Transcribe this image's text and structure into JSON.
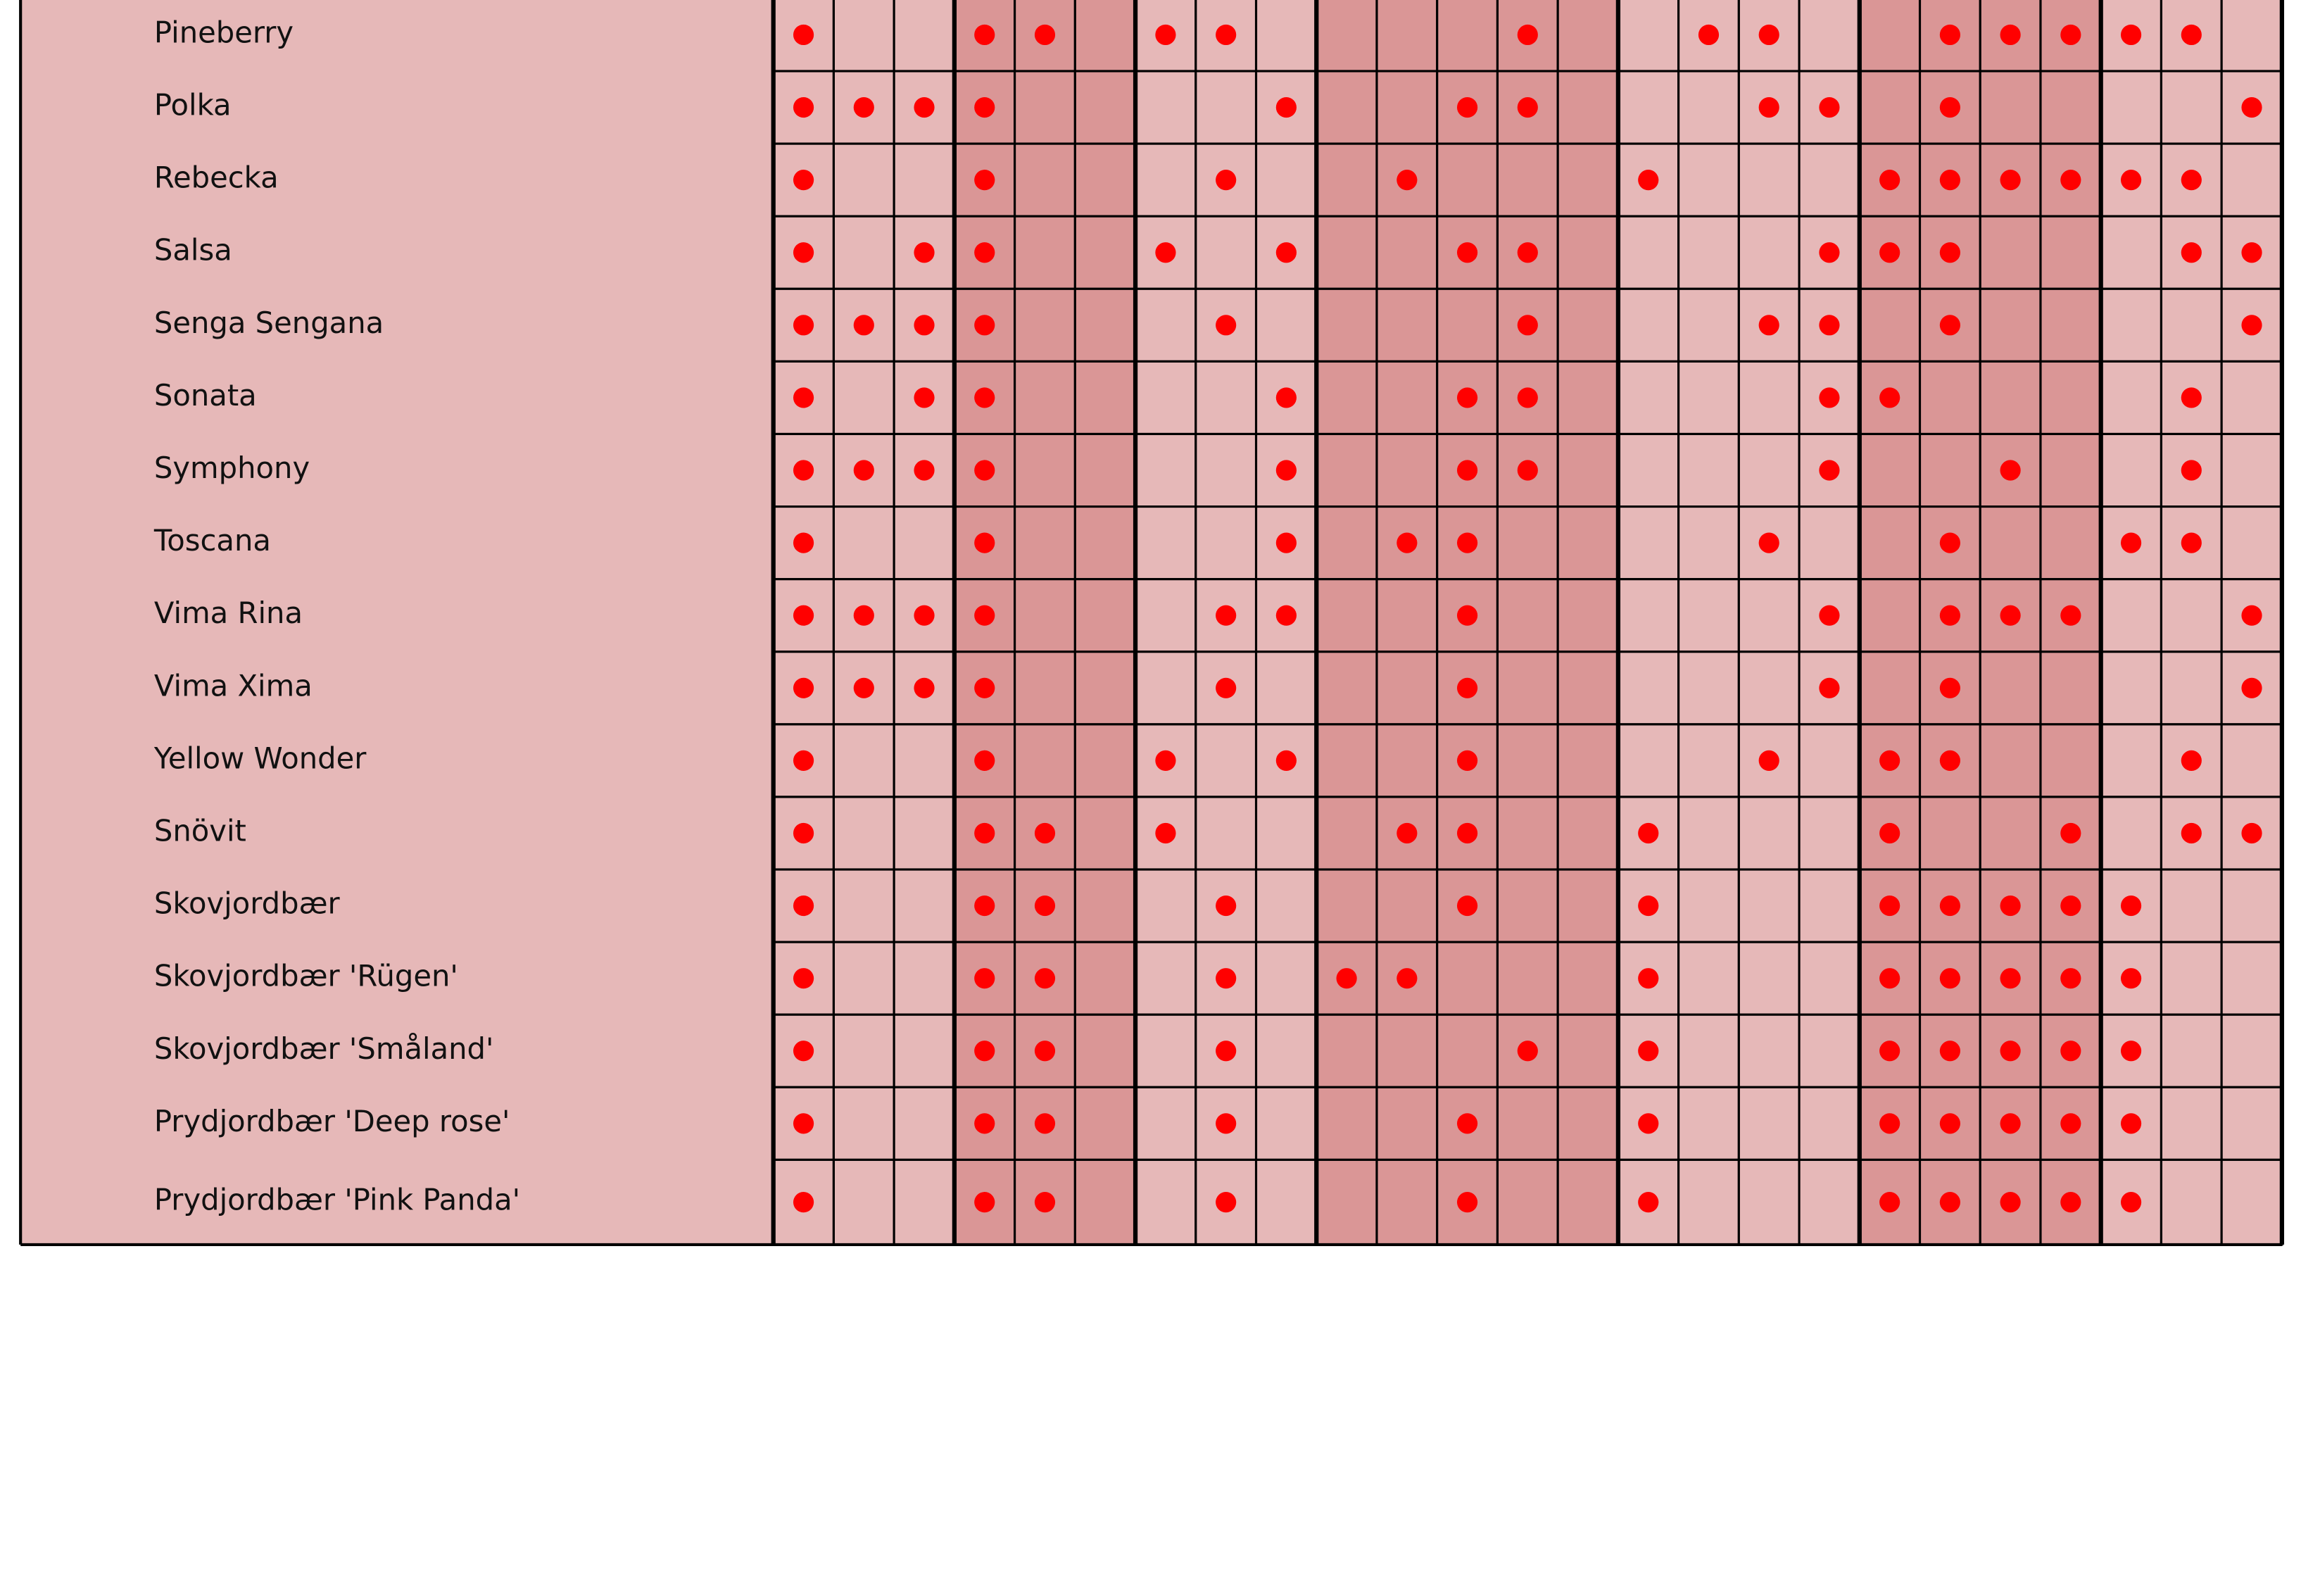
{
  "table": {
    "rows": [
      {
        "name": "Pineberry",
        "cells": [
          1,
          0,
          0,
          1,
          1,
          0,
          1,
          1,
          0,
          0,
          0,
          0,
          1,
          0,
          0,
          1,
          1,
          0,
          0,
          1,
          1,
          1,
          1,
          1,
          0
        ]
      },
      {
        "name": "Polka",
        "cells": [
          1,
          1,
          1,
          1,
          0,
          0,
          0,
          0,
          1,
          0,
          0,
          1,
          1,
          0,
          0,
          0,
          1,
          1,
          0,
          1,
          0,
          0,
          0,
          0,
          1
        ]
      },
      {
        "name": "Rebecka",
        "cells": [
          1,
          0,
          0,
          1,
          0,
          0,
          0,
          1,
          0,
          0,
          1,
          0,
          0,
          0,
          1,
          0,
          0,
          0,
          1,
          1,
          1,
          1,
          1,
          1,
          0
        ]
      },
      {
        "name": "Salsa",
        "cells": [
          1,
          0,
          1,
          1,
          0,
          0,
          1,
          0,
          1,
          0,
          0,
          1,
          1,
          0,
          0,
          0,
          0,
          1,
          1,
          1,
          0,
          0,
          0,
          1,
          1
        ]
      },
      {
        "name": "Senga Sengana",
        "cells": [
          1,
          1,
          1,
          1,
          0,
          0,
          0,
          1,
          0,
          0,
          0,
          0,
          1,
          0,
          0,
          0,
          1,
          1,
          0,
          1,
          0,
          0,
          0,
          0,
          1
        ]
      },
      {
        "name": "Sonata",
        "cells": [
          1,
          0,
          1,
          1,
          0,
          0,
          0,
          0,
          1,
          0,
          0,
          1,
          1,
          0,
          0,
          0,
          0,
          1,
          1,
          0,
          0,
          0,
          0,
          1,
          0
        ]
      },
      {
        "name": "Symphony",
        "cells": [
          1,
          1,
          1,
          1,
          0,
          0,
          0,
          0,
          1,
          0,
          0,
          1,
          1,
          0,
          0,
          0,
          0,
          1,
          0,
          0,
          1,
          0,
          0,
          1,
          0
        ]
      },
      {
        "name": "Toscana",
        "cells": [
          1,
          0,
          0,
          1,
          0,
          0,
          0,
          0,
          1,
          0,
          1,
          1,
          0,
          0,
          0,
          0,
          1,
          0,
          0,
          1,
          0,
          0,
          1,
          1,
          0
        ]
      },
      {
        "name": "Vima Rina",
        "cells": [
          1,
          1,
          1,
          1,
          0,
          0,
          0,
          1,
          1,
          0,
          0,
          1,
          0,
          0,
          0,
          0,
          0,
          1,
          0,
          1,
          1,
          1,
          0,
          0,
          1
        ]
      },
      {
        "name": "Vima Xima",
        "cells": [
          1,
          1,
          1,
          1,
          0,
          0,
          0,
          1,
          0,
          0,
          0,
          1,
          0,
          0,
          0,
          0,
          0,
          1,
          0,
          1,
          0,
          0,
          0,
          0,
          1
        ]
      },
      {
        "name": "Yellow Wonder",
        "cells": [
          1,
          0,
          0,
          1,
          0,
          0,
          1,
          0,
          1,
          0,
          0,
          1,
          0,
          0,
          0,
          0,
          1,
          0,
          1,
          1,
          0,
          0,
          0,
          1,
          0
        ]
      },
      {
        "name": "Snövit",
        "cells": [
          1,
          0,
          0,
          1,
          1,
          0,
          1,
          0,
          0,
          0,
          1,
          1,
          0,
          0,
          1,
          0,
          0,
          0,
          1,
          0,
          0,
          1,
          0,
          1,
          1
        ]
      },
      {
        "name": "Skovjordbær",
        "cells": [
          1,
          0,
          0,
          1,
          1,
          0,
          0,
          1,
          0,
          0,
          0,
          1,
          0,
          0,
          1,
          0,
          0,
          0,
          1,
          1,
          1,
          1,
          1,
          0,
          0
        ]
      },
      {
        "name": "Skovjordbær 'Rügen'",
        "cells": [
          1,
          0,
          0,
          1,
          1,
          0,
          0,
          1,
          0,
          1,
          1,
          0,
          0,
          0,
          1,
          0,
          0,
          0,
          1,
          1,
          1,
          1,
          1,
          0,
          0
        ]
      },
      {
        "name": "Skovjordbær 'Småland'",
        "cells": [
          1,
          0,
          0,
          1,
          1,
          0,
          0,
          1,
          0,
          0,
          0,
          0,
          1,
          0,
          1,
          0,
          0,
          0,
          1,
          1,
          1,
          1,
          1,
          0,
          0
        ]
      },
      {
        "name": "Prydjordbær 'Deep rose'",
        "cells": [
          1,
          0,
          0,
          1,
          1,
          0,
          0,
          1,
          0,
          0,
          0,
          1,
          0,
          0,
          1,
          0,
          0,
          0,
          1,
          1,
          1,
          1,
          1,
          0,
          0
        ]
      },
      {
        "name": "Prydjordbær 'Pink Panda'",
        "cells": [
          1,
          0,
          0,
          1,
          1,
          0,
          0,
          1,
          0,
          0,
          0,
          1,
          0,
          0,
          1,
          0,
          0,
          0,
          1,
          1,
          1,
          1,
          1,
          0,
          0
        ]
      }
    ]
  }
}
